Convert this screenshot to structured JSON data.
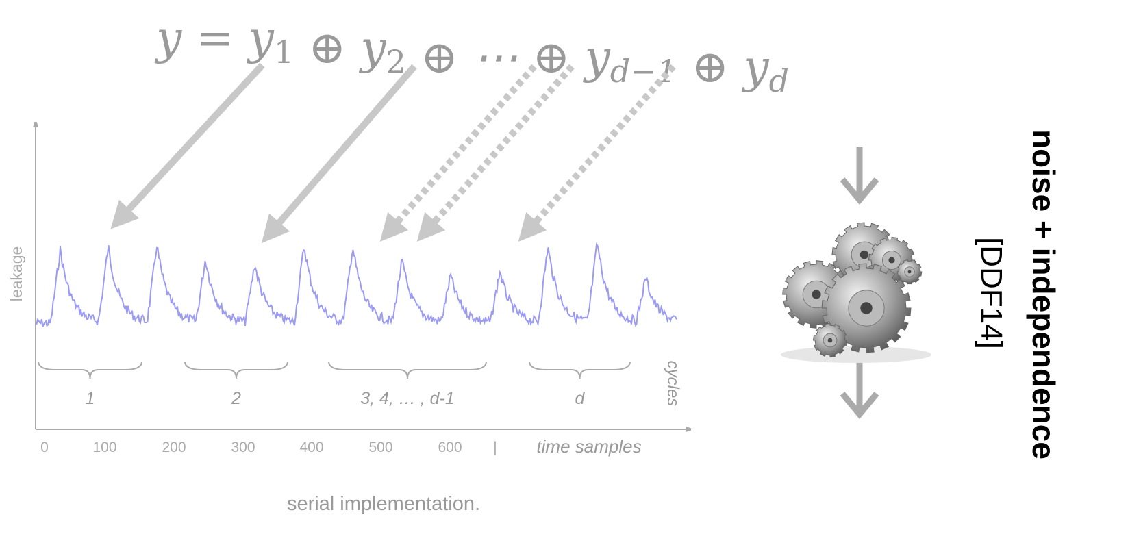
{
  "formula": [
    {
      "text": "y = y",
      "sub": "1"
    },
    {
      "text": " ⊕ y",
      "sub": "2"
    },
    {
      "text": " ⊕ ⋯ ⊕ y",
      "sub": "d−1"
    },
    {
      "text": " ⊕ y",
      "sub": "d"
    }
  ],
  "axis": {
    "y_label": "leakage",
    "x_ticks": [
      "0",
      "100",
      "200",
      "300",
      "400",
      "500",
      "600",
      "|"
    ],
    "x_label": "time samples"
  },
  "cycles": {
    "label": "cycles",
    "groups": [
      "1",
      "2",
      "3, 4, … , d-1",
      "d"
    ]
  },
  "caption": "serial implementation.",
  "side": {
    "title": "noise + independence",
    "reference": "[DDF14]"
  }
}
